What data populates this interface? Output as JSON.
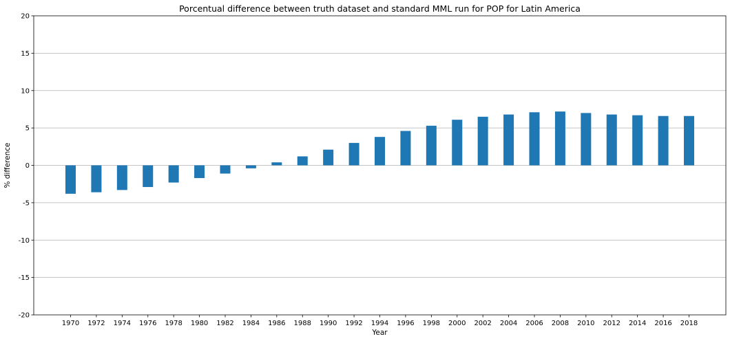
{
  "chart_data": {
    "type": "bar",
    "title": "Porcentual difference between truth dataset and standard MML run for POP for Latin America",
    "xlabel": "Year",
    "ylabel": "% difference",
    "ylim": [
      -20,
      20
    ],
    "yticks": [
      -20,
      -15,
      -10,
      -5,
      0,
      5,
      10,
      15,
      20
    ],
    "grid": "horizontal",
    "bar_color": "#1f77b4",
    "categories": [
      "1970",
      "1972",
      "1974",
      "1976",
      "1978",
      "1980",
      "1982",
      "1984",
      "1986",
      "1988",
      "1990",
      "1992",
      "1994",
      "1996",
      "1998",
      "2000",
      "2002",
      "2004",
      "2006",
      "2008",
      "2010",
      "2012",
      "2014",
      "2016",
      "2018"
    ],
    "values": [
      -3.8,
      -3.6,
      -3.3,
      -2.9,
      -2.3,
      -1.7,
      -1.1,
      -0.4,
      0.4,
      1.2,
      2.1,
      3.0,
      3.8,
      4.6,
      5.3,
      6.1,
      6.5,
      6.8,
      7.1,
      7.2,
      7.0,
      6.8,
      6.7,
      6.6,
      6.6
    ]
  }
}
